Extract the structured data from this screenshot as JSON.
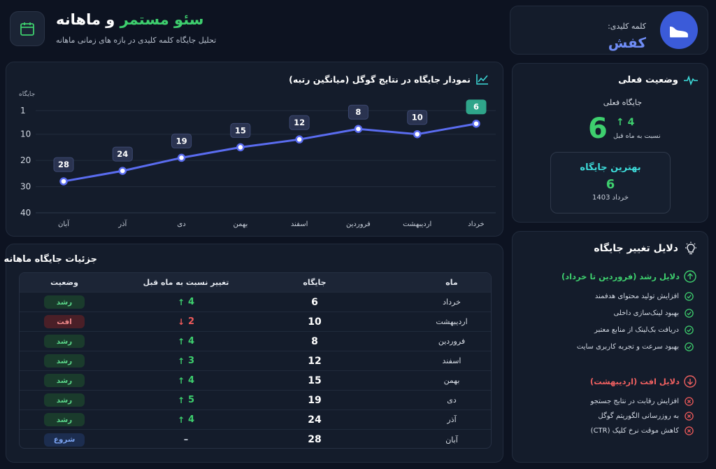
{
  "header": {
    "title_green": "سئو مستمر",
    "title_white": "و ماهانه",
    "subtitle": "تحلیل جایگاه کلمه کلیدی در بازه های زمانی ماهانه"
  },
  "keyword": {
    "label": "کلمه کلیدی:",
    "value": "کفش",
    "icon": "shoe-icon"
  },
  "chart": {
    "title": "نمودار جایگاه در نتایج گوگل (میانگین رتبه)",
    "icon": "line-chart-icon"
  },
  "chart_data": {
    "type": "line",
    "ylabel": "جایگاه",
    "y_ticks": [
      1,
      10,
      20,
      30,
      40
    ],
    "ylim": [
      1,
      40
    ],
    "y_inverted": true,
    "categories": [
      "آبان",
      "آذر",
      "دی",
      "بهمن",
      "اسفند",
      "فروردین",
      "اردیبهشت",
      "خرداد"
    ],
    "values": [
      28,
      24,
      19,
      15,
      12,
      8,
      10,
      6
    ],
    "highlight_last": true,
    "colors": {
      "line": "#5a6cf0",
      "highlight": "#2fa58a"
    },
    "grid": true
  },
  "status": {
    "title": "وضعیت فعلی",
    "icon": "pulse-icon",
    "current_label": "جایگاه فعلی",
    "current_value": "6",
    "change": "4",
    "change_label": "نسبت به ماه قبل",
    "best_title": "بهترین جایگاه",
    "best_value": "6",
    "best_date": "خرداد 1403"
  },
  "table": {
    "title": "جزئیات جایگاه ماهانه",
    "headers": {
      "month": "ماه",
      "position": "جایگاه",
      "change": "تغییر نسبت به ماه قبل",
      "status": "وضعیت"
    },
    "rows": [
      {
        "month": "خرداد",
        "position": "6",
        "change": "4",
        "dir": "up",
        "status": "رشد",
        "kind": "grow"
      },
      {
        "month": "اردیبهشت",
        "position": "10",
        "change": "2",
        "dir": "down",
        "status": "افت",
        "kind": "drop"
      },
      {
        "month": "فروردین",
        "position": "8",
        "change": "4",
        "dir": "up",
        "status": "رشد",
        "kind": "grow"
      },
      {
        "month": "اسفند",
        "position": "12",
        "change": "3",
        "dir": "up",
        "status": "رشد",
        "kind": "grow"
      },
      {
        "month": "بهمن",
        "position": "15",
        "change": "4",
        "dir": "up",
        "status": "رشد",
        "kind": "grow"
      },
      {
        "month": "دی",
        "position": "19",
        "change": "5",
        "dir": "up",
        "status": "رشد",
        "kind": "grow"
      },
      {
        "month": "آذر",
        "position": "24",
        "change": "4",
        "dir": "up",
        "status": "رشد",
        "kind": "grow"
      },
      {
        "month": "آبان",
        "position": "28",
        "change": "–",
        "dir": "none",
        "status": "شروع",
        "kind": "start"
      }
    ]
  },
  "reasons": {
    "title": "دلایل تغییر جایگاه",
    "icon": "lightbulb-icon",
    "grow_title": "دلایل رشد (فروردین تا خرداد)",
    "grow_items": [
      "افزایش تولید محتوای هدفمند",
      "بهبود لینک‌سازی داخلی",
      "دریافت بک‌لینک از منابع معتبر",
      "بهبود سرعت و تجربه کاربری سایت"
    ],
    "drop_title": "دلایل افت (اردیبهشت)",
    "drop_items": [
      "افزایش رقابت در نتایج جستجو",
      "به روزرسانی الگوریتم گوگل",
      "کاهش موقت نرخ کلیک (CTR)"
    ]
  }
}
